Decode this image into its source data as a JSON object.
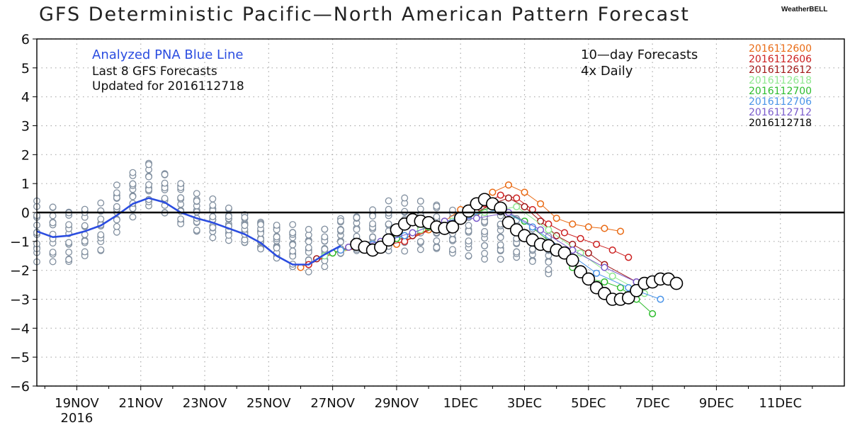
{
  "title": "GFS Deterministic Pacific—North American Pattern Forecast",
  "brand": "WeatherBELL",
  "annotations": {
    "analyzed": "Analyzed PNA Blue Line",
    "last8": "Last 8 GFS Forecasts",
    "updated": "Updated for 2016112718",
    "tenday": "10—day Forecasts",
    "daily": "4x Daily"
  },
  "colors": {
    "analyzed": "#2b4de0",
    "ensemble": "#8290a0",
    "zero_line": "#000000",
    "grid": "#aaaaaa"
  },
  "chart_data": {
    "type": "line",
    "title": "GFS Deterministic Pacific—North American Pattern Forecast",
    "xlabel": "",
    "ylabel": "",
    "ylim": [
      -6,
      6
    ],
    "xlim": [
      "2016-11-17T18",
      "2016-12-13T00"
    ],
    "grid": true,
    "legend_position": "top-right",
    "yticks": [
      "6",
      "5",
      "4",
      "3",
      "2",
      "1",
      "0",
      "−1",
      "−2",
      "−3",
      "−4",
      "−5",
      "−6"
    ],
    "xticks": [
      {
        "date": "2016-11-19",
        "label": "19NOV",
        "sub": "2016"
      },
      {
        "date": "2016-11-21",
        "label": "21NOV",
        "sub": ""
      },
      {
        "date": "2016-11-23",
        "label": "23NOV",
        "sub": ""
      },
      {
        "date": "2016-11-25",
        "label": "25NOV",
        "sub": ""
      },
      {
        "date": "2016-11-27",
        "label": "27NOV",
        "sub": ""
      },
      {
        "date": "2016-11-29",
        "label": "29NOV",
        "sub": ""
      },
      {
        "date": "2016-12-01",
        "label": "1DEC",
        "sub": ""
      },
      {
        "date": "2016-12-03",
        "label": "3DEC",
        "sub": ""
      },
      {
        "date": "2016-12-05",
        "label": "5DEC",
        "sub": ""
      },
      {
        "date": "2016-12-07",
        "label": "7DEC",
        "sub": ""
      },
      {
        "date": "2016-12-09",
        "label": "9DEC",
        "sub": ""
      },
      {
        "date": "2016-12-11",
        "label": "11DEC",
        "sub": ""
      }
    ],
    "analyzed": {
      "name": "Analyzed PNA Blue Line",
      "color": "#2b4de0",
      "x": [
        "2016-11-17T18",
        "2016-11-18T06",
        "2016-11-18T18",
        "2016-11-19T06",
        "2016-11-19T18",
        "2016-11-20T06",
        "2016-11-20T18",
        "2016-11-21T06",
        "2016-11-21T18",
        "2016-11-22T06",
        "2016-11-22T18",
        "2016-11-23T06",
        "2016-11-23T18",
        "2016-11-24T06",
        "2016-11-24T18",
        "2016-11-25T06",
        "2016-11-25T18",
        "2016-11-26T06",
        "2016-11-26T18",
        "2016-11-27T06"
      ],
      "values": [
        -0.65,
        -0.85,
        -0.8,
        -0.65,
        -0.45,
        -0.1,
        0.3,
        0.5,
        0.35,
        0.0,
        -0.2,
        -0.35,
        -0.55,
        -0.75,
        -1.05,
        -1.5,
        -1.8,
        -1.8,
        -1.45,
        -1.15
      ]
    },
    "history_band": {
      "name": "",
      "color": "#8290a0",
      "x": [
        "2016-11-17T18",
        "2016-11-18T18",
        "2016-11-19T18",
        "2016-11-20T12",
        "2016-11-21T06",
        "2016-11-22T00",
        "2016-11-22T18",
        "2016-11-23T18",
        "2016-11-24T18",
        "2016-11-25T18",
        "2016-11-26T12",
        "2016-11-27T06",
        "2016-11-28T00",
        "2016-11-29T00",
        "2016-11-30T00",
        "2016-12-01T00",
        "2016-12-02T00",
        "2016-12-03T00",
        "2016-12-04T00"
      ],
      "upper": [
        0.3,
        0.1,
        0.3,
        1.1,
        1.7,
        1.3,
        0.6,
        0.1,
        -0.3,
        -0.5,
        -0.8,
        -0.2,
        0.0,
        0.4,
        0.4,
        0.1,
        0.0,
        -0.3,
        -0.9
      ],
      "lower": [
        -1.6,
        -1.8,
        -1.3,
        -0.2,
        0.2,
        -0.3,
        -0.6,
        -0.9,
        -1.3,
        -1.8,
        -2.0,
        -1.5,
        -1.3,
        -1.2,
        -1.3,
        -1.5,
        -1.5,
        -1.6,
        -2.3
      ]
    },
    "series": [
      {
        "name": "2016112600",
        "color": "#e96a14",
        "x": [
          "2016-11-26T00",
          "2016-11-27T00",
          "2016-11-28T00",
          "2016-11-29T00",
          "2016-11-30T00",
          "2016-11-30T12",
          "2016-12-01T00",
          "2016-12-01T12",
          "2016-12-02T00",
          "2016-12-02T12",
          "2016-12-03T00",
          "2016-12-03T12",
          "2016-12-04T00",
          "2016-12-04T12",
          "2016-12-05T00",
          "2016-12-05T12",
          "2016-12-06T00"
        ],
        "values": [
          -1.9,
          -1.4,
          -1.2,
          -1.1,
          -0.6,
          -0.3,
          0.1,
          0.4,
          0.7,
          0.95,
          0.7,
          0.3,
          -0.2,
          -0.4,
          -0.5,
          -0.55,
          -0.65
        ]
      },
      {
        "name": "2016112606",
        "color": "#cc2020",
        "x": [
          "2016-11-26T06",
          "2016-11-27T06",
          "2016-11-28T06",
          "2016-11-29T06",
          "2016-11-30T06",
          "2016-12-01T06",
          "2016-12-01T18",
          "2016-12-02T06",
          "2016-12-02T18",
          "2016-12-03T06",
          "2016-12-03T18",
          "2016-12-04T06",
          "2016-12-04T18",
          "2016-12-05T06",
          "2016-12-05T18",
          "2016-12-06T06"
        ],
        "values": [
          -1.8,
          -1.3,
          -1.2,
          -1.0,
          -0.5,
          -0.1,
          0.3,
          0.6,
          0.5,
          0.1,
          -0.4,
          -0.7,
          -0.9,
          -1.1,
          -1.3,
          -1.55
        ]
      },
      {
        "name": "2016112612",
        "color": "#a01818",
        "x": [
          "2016-11-26T12",
          "2016-11-27T12",
          "2016-11-28T12",
          "2016-11-29T12",
          "2016-11-30T12",
          "2016-12-01T12",
          "2016-12-02T00",
          "2016-12-02T12",
          "2016-12-03T00",
          "2016-12-03T12",
          "2016-12-04T00",
          "2016-12-04T12",
          "2016-12-05T00",
          "2016-12-05T12",
          "2016-12-06T12"
        ],
        "values": [
          -1.6,
          -1.2,
          -1.1,
          -0.8,
          -0.4,
          0.0,
          0.3,
          0.5,
          0.2,
          -0.3,
          -0.8,
          -1.1,
          -1.4,
          -1.8,
          -2.4
        ]
      },
      {
        "name": "2016112618",
        "color": "#90e890",
        "x": [
          "2016-11-26T18",
          "2016-11-27T18",
          "2016-11-28T18",
          "2016-11-29T18",
          "2016-11-30T18",
          "2016-12-01T18",
          "2016-12-02T18",
          "2016-12-03T18",
          "2016-12-04T18",
          "2016-12-05T18",
          "2016-12-06T18"
        ],
        "values": [
          -1.5,
          -1.2,
          -1.0,
          -0.6,
          -0.3,
          0.0,
          0.2,
          -0.6,
          -1.4,
          -2.2,
          -2.8
        ]
      },
      {
        "name": "2016112700",
        "color": "#2ebd2e",
        "x": [
          "2016-11-27T00",
          "2016-11-28T00",
          "2016-11-29T00",
          "2016-11-30T00",
          "2016-12-01T00",
          "2016-12-02T00",
          "2016-12-03T00",
          "2016-12-04T00",
          "2016-12-04T12",
          "2016-12-05T00",
          "2016-12-05T12",
          "2016-12-06T00",
          "2016-12-06T12",
          "2016-12-07T00"
        ],
        "values": [
          -1.4,
          -1.1,
          -0.9,
          -0.5,
          -0.2,
          0.2,
          -0.3,
          -1.2,
          -1.9,
          -2.3,
          -2.4,
          -2.6,
          -3.0,
          -3.5
        ]
      },
      {
        "name": "2016112706",
        "color": "#4a94e8",
        "x": [
          "2016-11-27T06",
          "2016-11-28T06",
          "2016-11-29T06",
          "2016-11-30T06",
          "2016-12-01T06",
          "2016-12-02T06",
          "2016-12-03T06",
          "2016-12-04T06",
          "2016-12-05T06",
          "2016-12-06T06",
          "2016-12-07T06"
        ],
        "values": [
          -1.3,
          -1.1,
          -0.8,
          -0.4,
          -0.1,
          0.1,
          -0.5,
          -1.3,
          -2.1,
          -2.6,
          -3.0
        ]
      },
      {
        "name": "2016112712",
        "color": "#7a5ccc",
        "x": [
          "2016-11-27T12",
          "2016-11-28T12",
          "2016-11-29T12",
          "2016-11-30T12",
          "2016-12-01T12",
          "2016-12-02T12",
          "2016-12-03T12",
          "2016-12-04T12",
          "2016-12-05T12",
          "2016-12-06T12",
          "2016-12-07T00",
          "2016-12-07T12"
        ],
        "values": [
          -1.2,
          -1.0,
          -0.7,
          -0.3,
          -0.2,
          0.0,
          -0.6,
          -1.3,
          -1.9,
          -2.4,
          -2.3,
          -2.3
        ]
      },
      {
        "name": "2016112718",
        "color": "#000000",
        "x": [
          "2016-11-27T18",
          "2016-11-28T00",
          "2016-11-28T06",
          "2016-11-28T12",
          "2016-11-28T18",
          "2016-11-29T00",
          "2016-11-29T06",
          "2016-11-29T12",
          "2016-11-29T18",
          "2016-11-30T00",
          "2016-11-30T06",
          "2016-11-30T12",
          "2016-11-30T18",
          "2016-12-01T00",
          "2016-12-01T06",
          "2016-12-01T12",
          "2016-12-01T18",
          "2016-12-02T00",
          "2016-12-02T06",
          "2016-12-02T12",
          "2016-12-02T18",
          "2016-12-03T00",
          "2016-12-03T06",
          "2016-12-03T12",
          "2016-12-03T18",
          "2016-12-04T00",
          "2016-12-04T06",
          "2016-12-04T12",
          "2016-12-04T18",
          "2016-12-05T00",
          "2016-12-05T06",
          "2016-12-05T12",
          "2016-12-05T18",
          "2016-12-06T00",
          "2016-12-06T06",
          "2016-12-06T12",
          "2016-12-06T18",
          "2016-12-07T00",
          "2016-12-07T06",
          "2016-12-07T12",
          "2016-12-07T18"
        ],
        "values": [
          -1.1,
          -1.2,
          -1.3,
          -1.2,
          -0.95,
          -0.6,
          -0.4,
          -0.25,
          -0.3,
          -0.35,
          -0.5,
          -0.55,
          -0.5,
          -0.2,
          0.05,
          0.3,
          0.45,
          0.3,
          0.15,
          -0.35,
          -0.6,
          -0.8,
          -0.95,
          -1.1,
          -1.15,
          -1.3,
          -1.4,
          -1.65,
          -2.05,
          -2.3,
          -2.6,
          -2.8,
          -3.0,
          -3.0,
          -2.95,
          -2.7,
          -2.45,
          -2.4,
          -2.3,
          -2.3,
          -2.45
        ]
      }
    ]
  }
}
